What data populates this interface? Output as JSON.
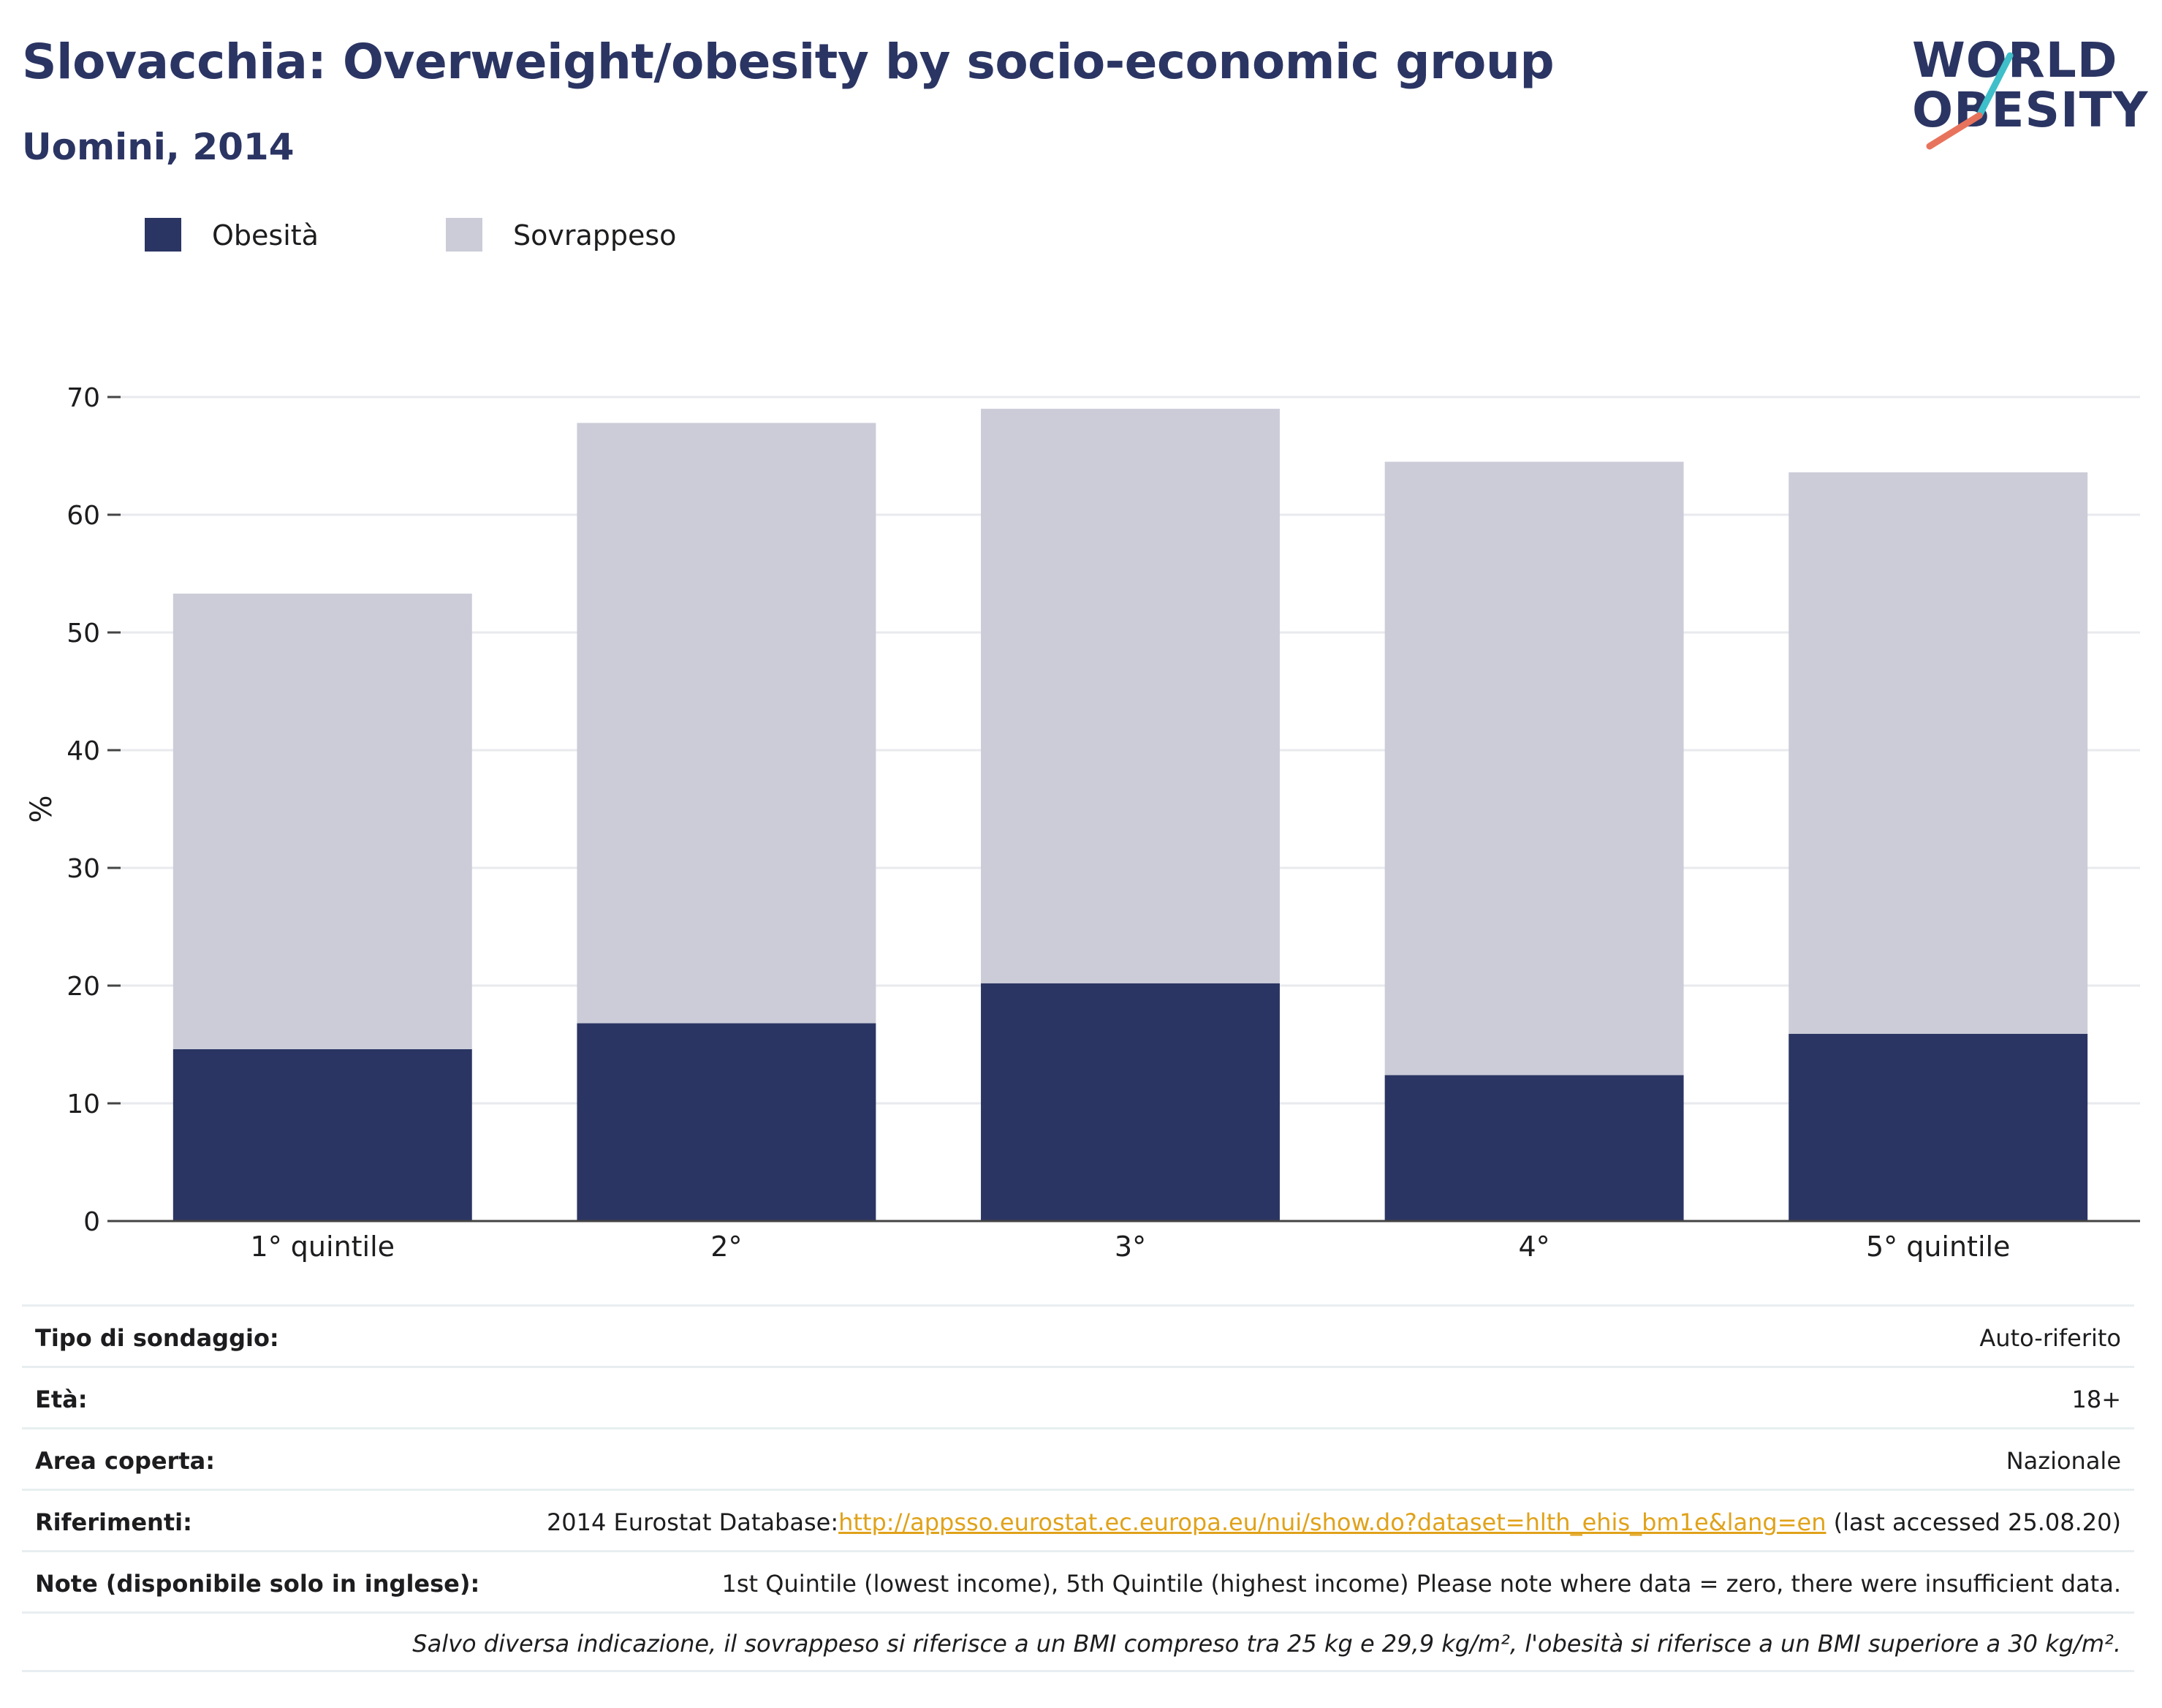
{
  "header": {
    "title": "Slovacchia: Overweight/obesity by socio-economic group",
    "subtitle": "Uomini, 2014"
  },
  "logo": {
    "line1": "WORLD",
    "line2": "OBESITY",
    "slash_colors": [
      "#3fbfc9",
      "#e8735d"
    ]
  },
  "colors": {
    "obesity": "#2b3563",
    "overweight": "#cbccd8",
    "title": "#2b3563",
    "link": "#e0a21a",
    "grid": "#e8eaee",
    "axis": "#444444"
  },
  "chart_data": {
    "type": "bar",
    "stacked": true,
    "categories": [
      "1° quintile",
      "2°",
      "3°",
      "4°",
      "5° quintile"
    ],
    "series": [
      {
        "name": "Obesità",
        "values": [
          14.6,
          16.8,
          20.2,
          12.4,
          15.9
        ]
      },
      {
        "name": "Sovrappeso",
        "values": [
          38.7,
          51.0,
          48.8,
          52.1,
          47.7
        ]
      }
    ],
    "ylabel": "%",
    "ylim": [
      0,
      70
    ],
    "yticks": [
      0,
      10,
      20,
      30,
      40,
      50,
      60,
      70
    ],
    "grid": true,
    "legend_position": "top-left"
  },
  "info": {
    "rows": [
      {
        "label": "Tipo di sondaggio:",
        "value": "Auto-riferito"
      },
      {
        "label": "Età:",
        "value": "18+"
      },
      {
        "label": "Area coperta:",
        "value": "Nazionale"
      },
      {
        "label": "Riferimenti:",
        "value_prefix": "2014 Eurostat Database:",
        "value_link": "http://appsso.eurostat.ec.europa.eu/nui/show.do?dataset=hlth_ehis_bm1e&lang=en",
        "value_suffix": " (last accessed 25.08.20)"
      },
      {
        "label": "Note (disponibile solo in inglese):",
        "value": "1st Quintile (lowest income), 5th Quintile (highest income) Please note where data = zero, there were insufficient data."
      }
    ],
    "footnote": "Salvo diversa indicazione, il sovrappeso si riferisce a un BMI compreso tra 25 kg e 29,9 kg/m², l'obesità si riferisce a un BMI superiore a 30 kg/m²."
  }
}
